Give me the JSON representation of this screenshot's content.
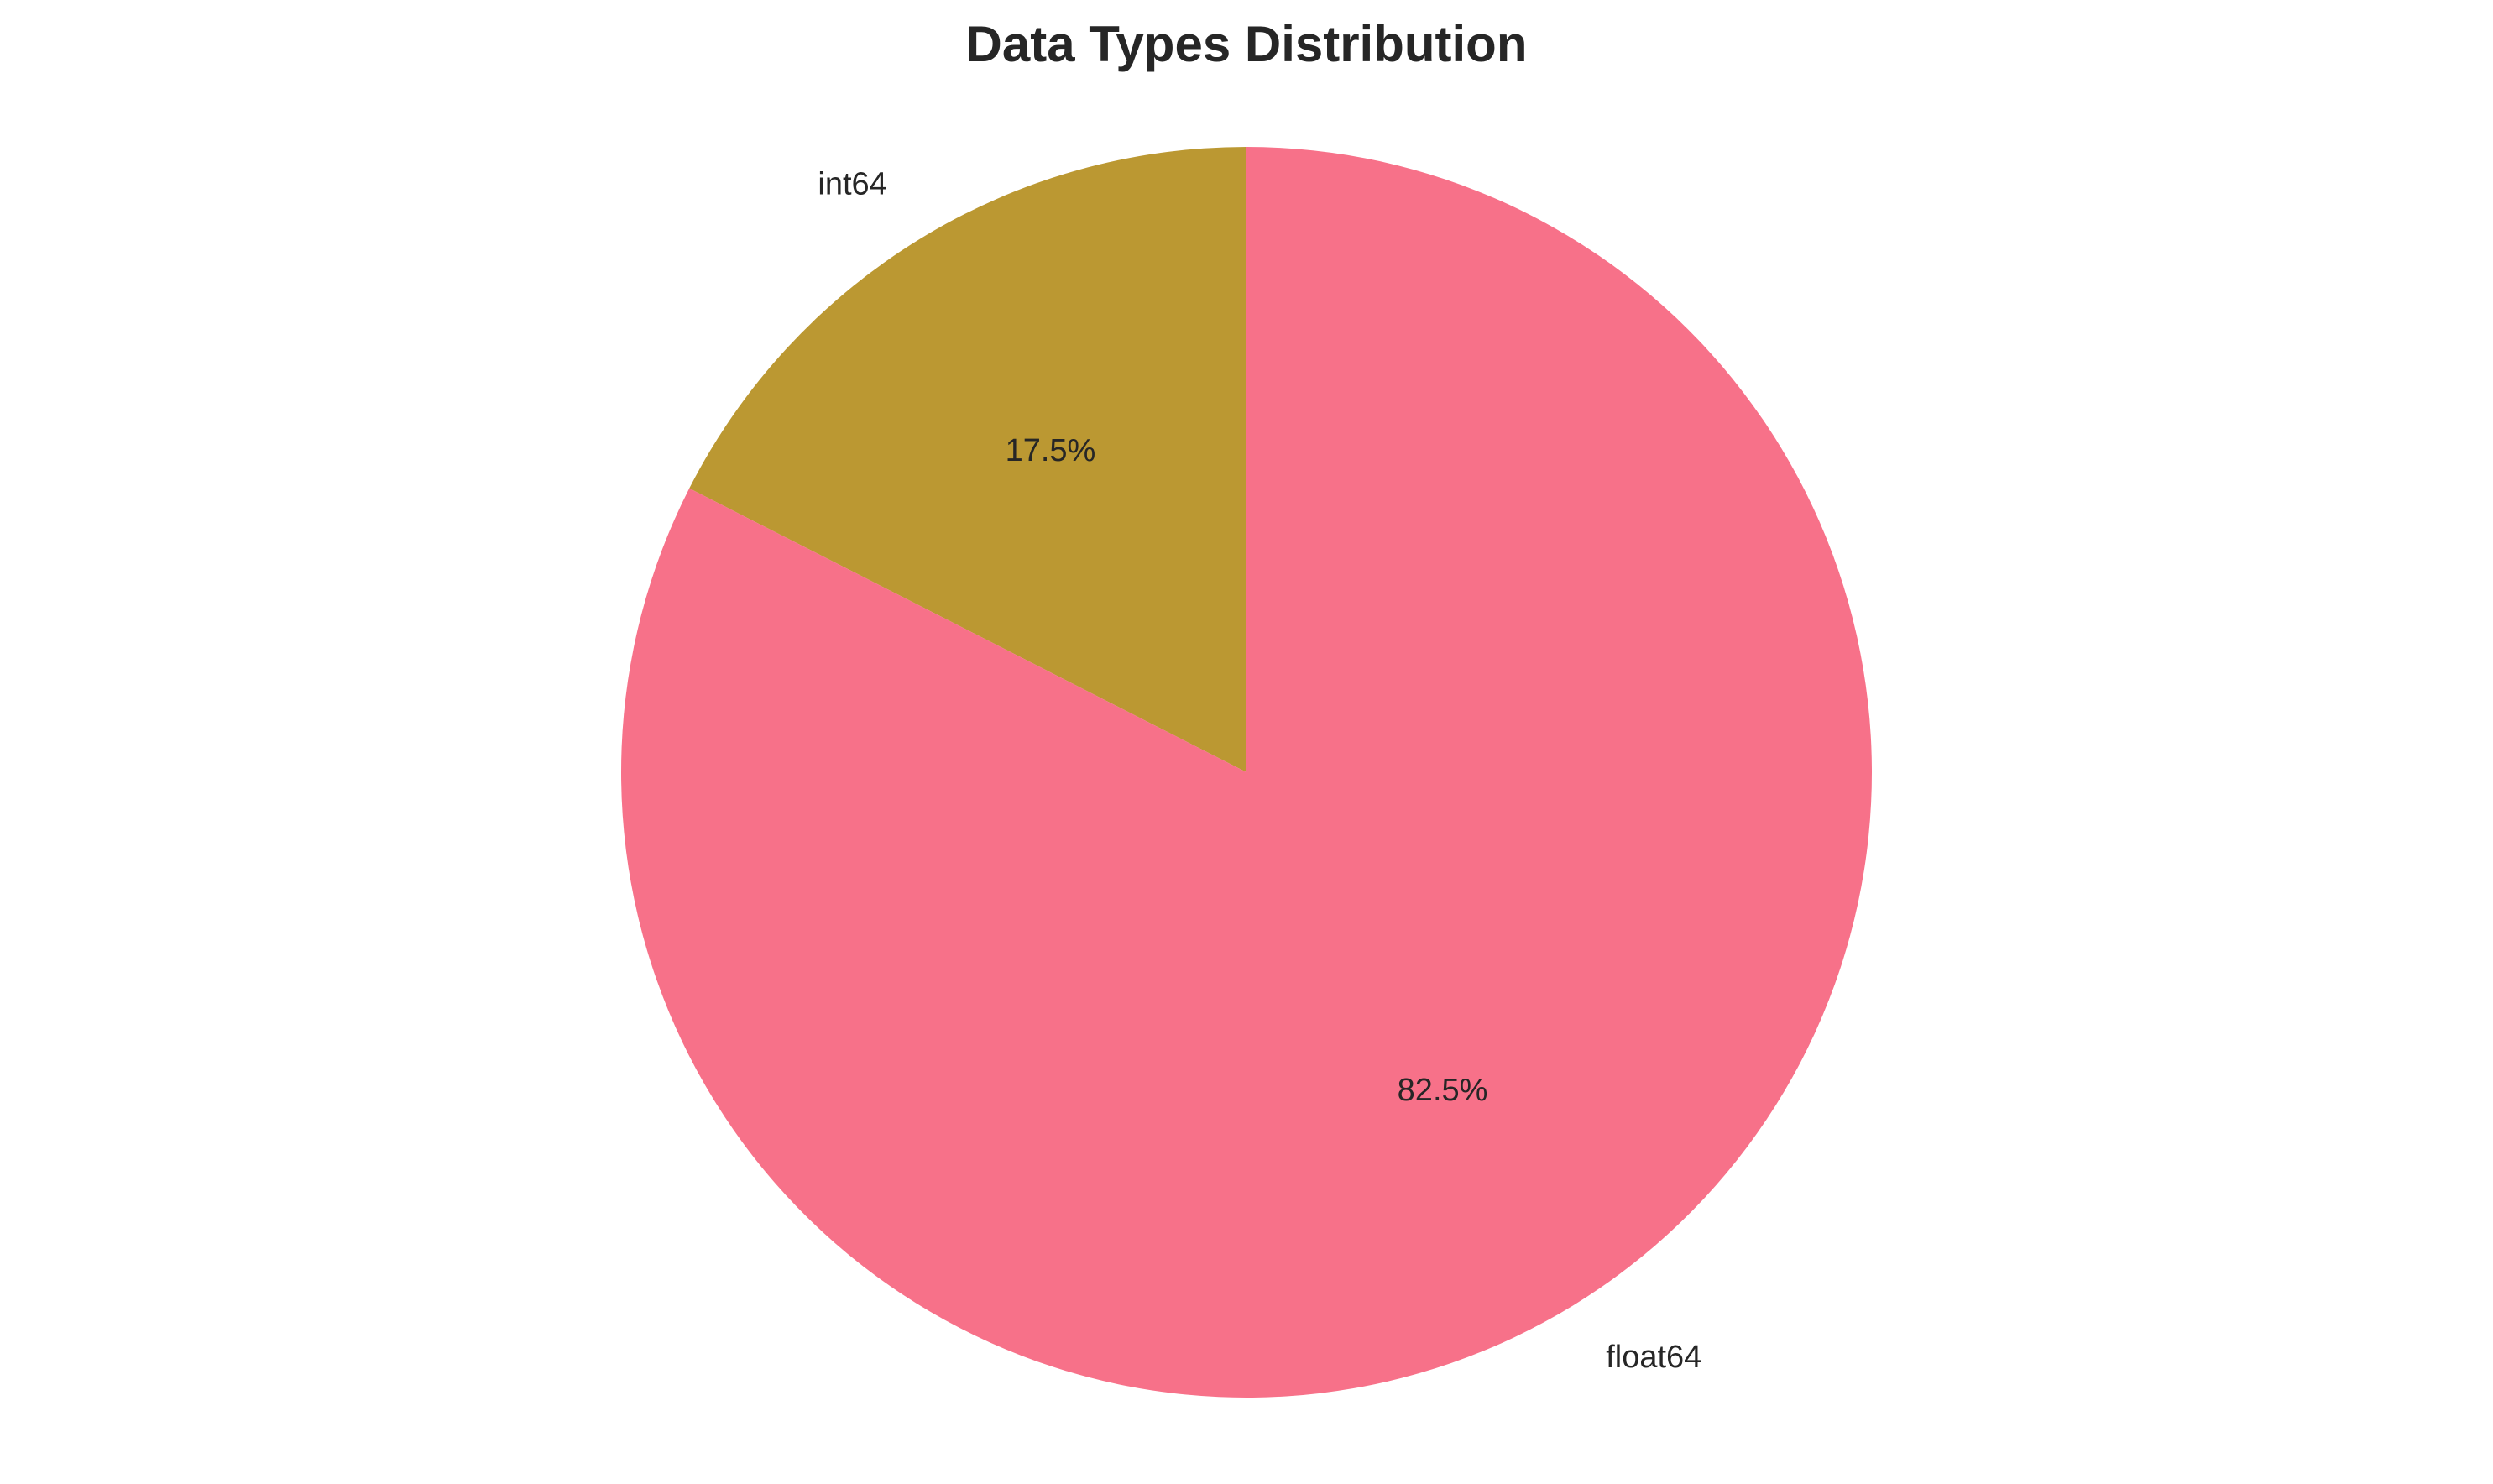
{
  "chart_data": {
    "type": "pie",
    "title": "Data Types Distribution",
    "categories": [
      "float64",
      "int64"
    ],
    "values": [
      82.5,
      17.5
    ],
    "value_labels": [
      "82.5%",
      "17.5%"
    ],
    "colors": [
      "#f77189",
      "#bb9832"
    ],
    "start_angle_deg": 90,
    "direction": "clockwise-from-int64",
    "legend": "none"
  }
}
